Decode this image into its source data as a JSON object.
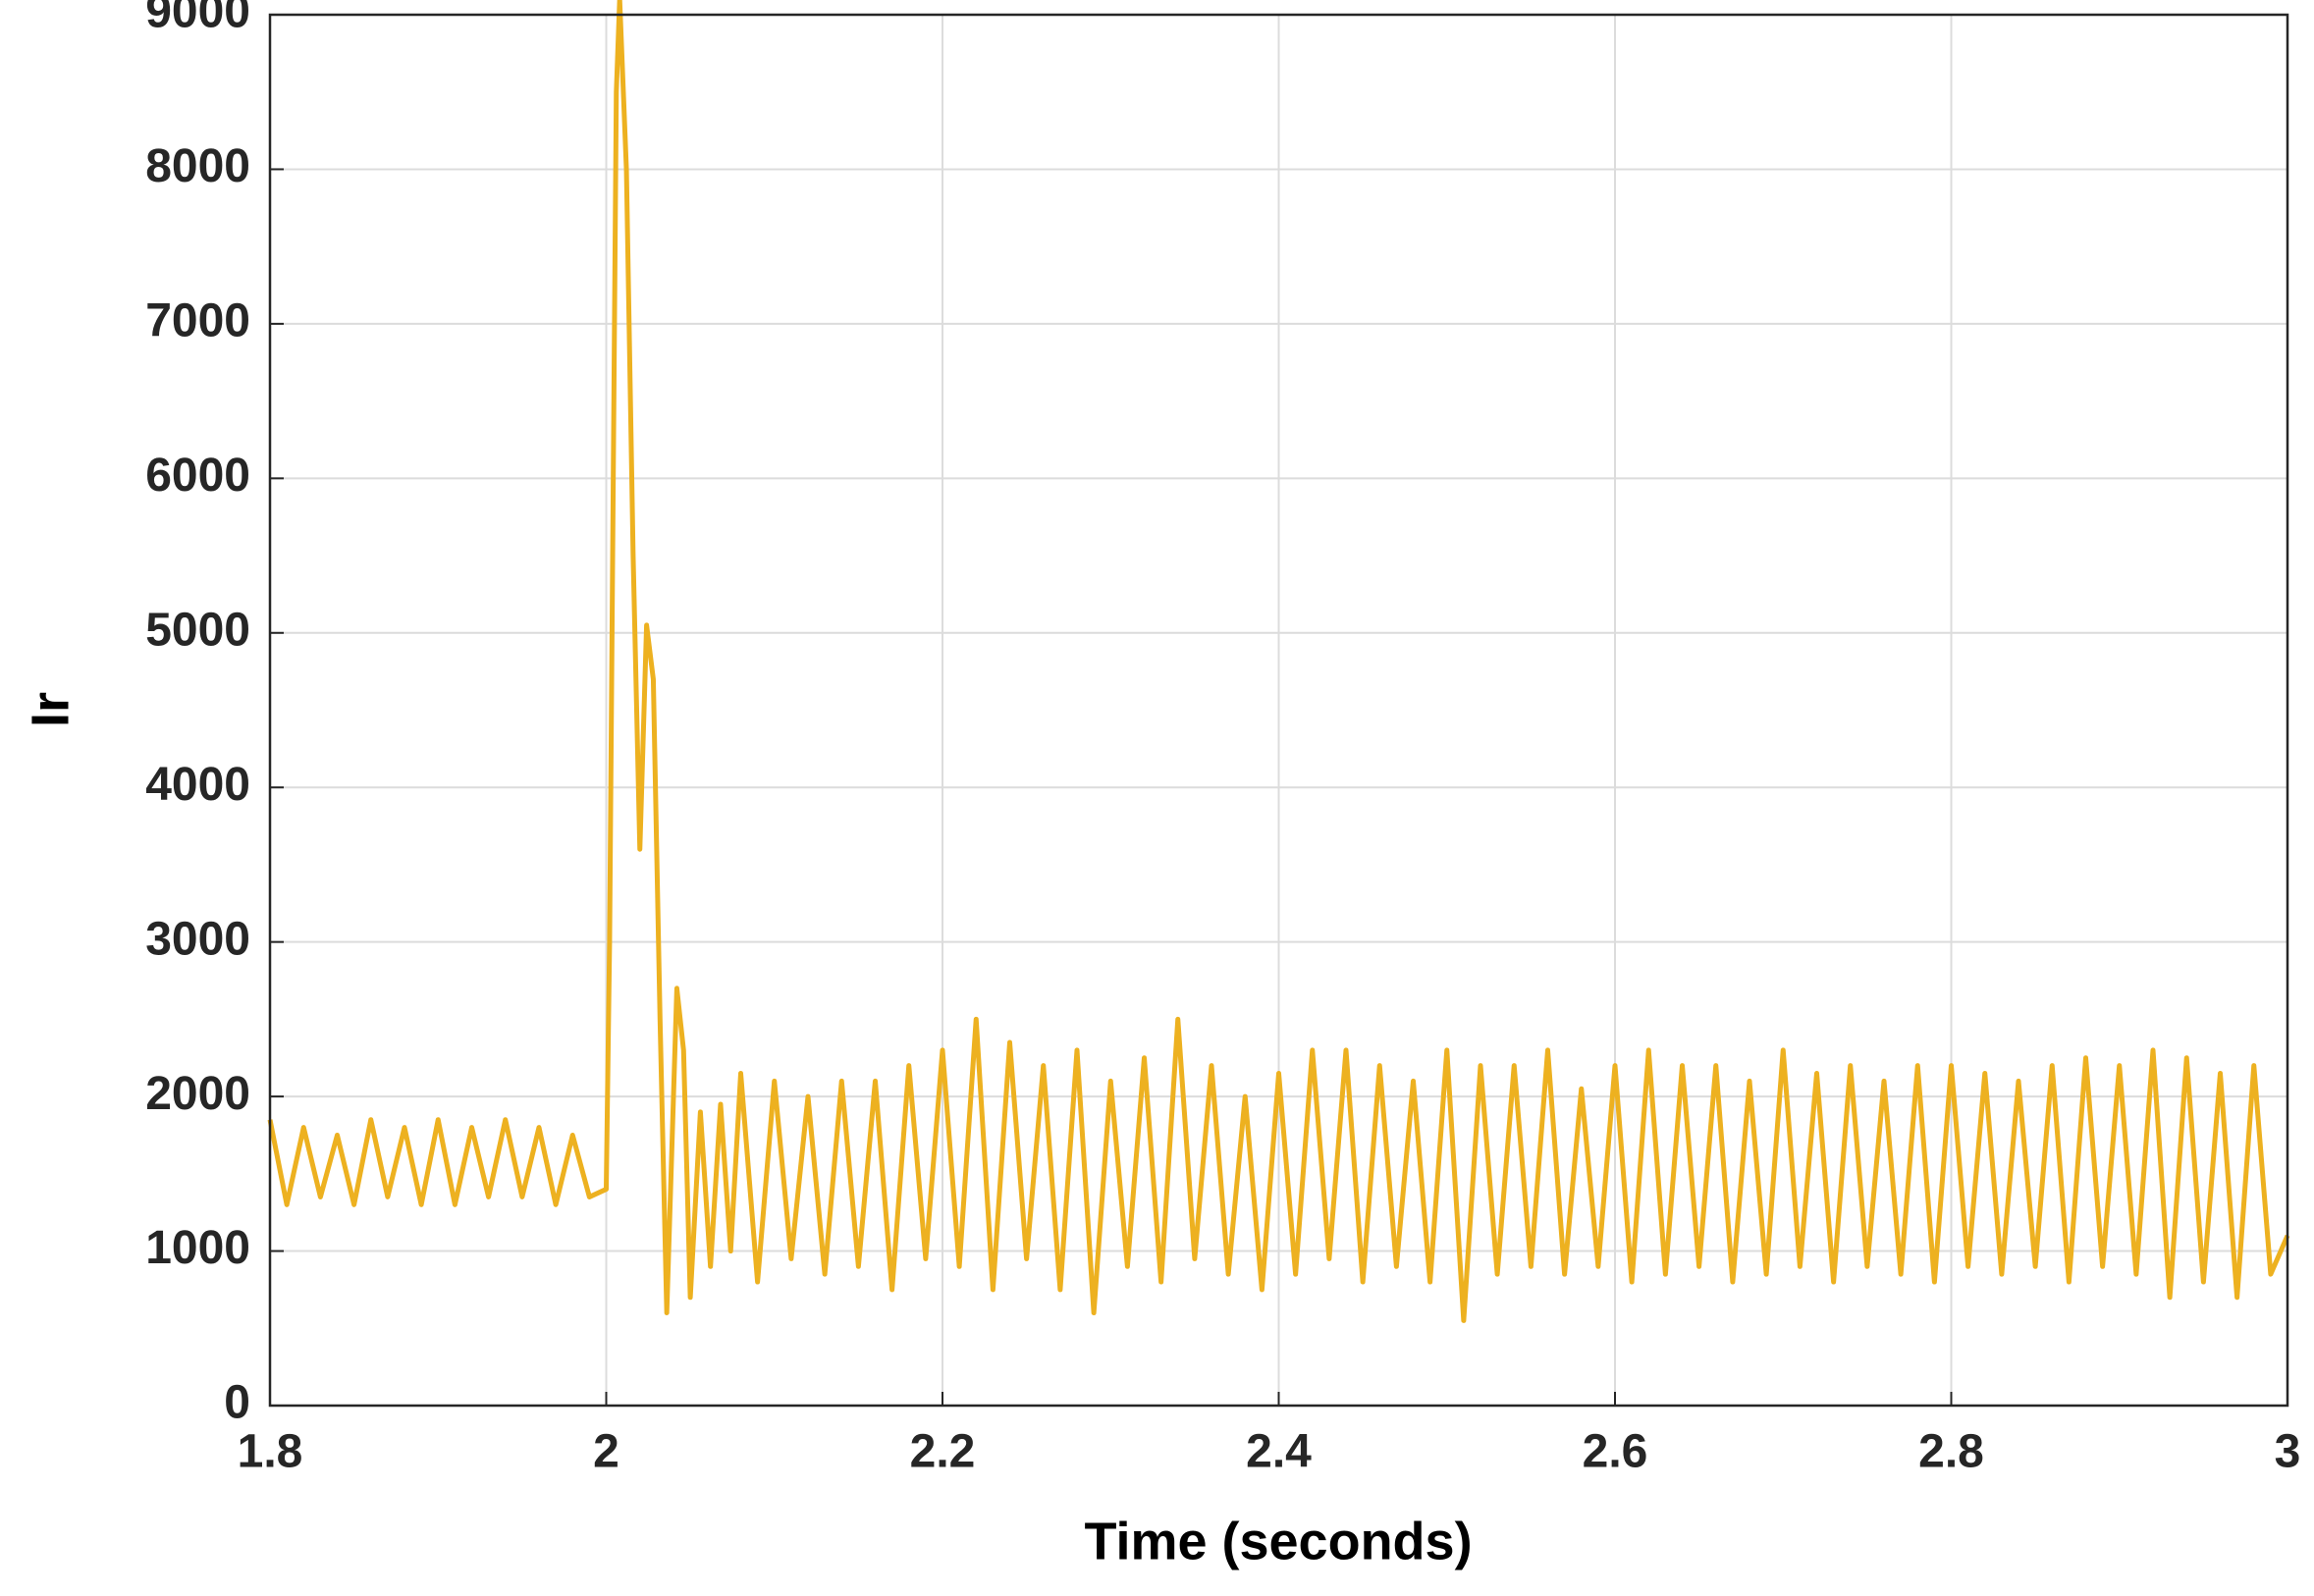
{
  "chart_data": {
    "type": "line",
    "xlabel": "Time (seconds)",
    "ylabel": "Ir",
    "color": "#edb120",
    "grid": true,
    "xlim": [
      1.8,
      3
    ],
    "ylim": [
      0,
      9000
    ],
    "xticks": [
      1.8,
      2,
      2.2,
      2.4,
      2.6,
      2.8,
      3
    ],
    "yticks": [
      0,
      1000,
      2000,
      3000,
      4000,
      5000,
      6000,
      7000,
      8000,
      9000
    ],
    "x": [
      1.8,
      1.81,
      1.82,
      1.83,
      1.84,
      1.85,
      1.86,
      1.87,
      1.88,
      1.89,
      1.9,
      1.91,
      1.92,
      1.93,
      1.94,
      1.95,
      1.96,
      1.97,
      1.98,
      1.99,
      2.0,
      2.002,
      2.006,
      2.008,
      2.012,
      2.016,
      2.02,
      2.024,
      2.028,
      2.032,
      2.036,
      2.042,
      2.046,
      2.05,
      2.056,
      2.062,
      2.068,
      2.074,
      2.08,
      2.09,
      2.1,
      2.11,
      2.12,
      2.13,
      2.14,
      2.15,
      2.16,
      2.17,
      2.18,
      2.19,
      2.2,
      2.21,
      2.22,
      2.23,
      2.24,
      2.25,
      2.26,
      2.27,
      2.28,
      2.29,
      2.3,
      2.31,
      2.32,
      2.33,
      2.34,
      2.35,
      2.36,
      2.37,
      2.38,
      2.39,
      2.4,
      2.41,
      2.42,
      2.43,
      2.44,
      2.45,
      2.46,
      2.47,
      2.48,
      2.49,
      2.5,
      2.51,
      2.52,
      2.53,
      2.54,
      2.55,
      2.56,
      2.57,
      2.58,
      2.59,
      2.6,
      2.61,
      2.62,
      2.63,
      2.64,
      2.65,
      2.66,
      2.67,
      2.68,
      2.69,
      2.7,
      2.71,
      2.72,
      2.73,
      2.74,
      2.75,
      2.76,
      2.77,
      2.78,
      2.79,
      2.8,
      2.81,
      2.82,
      2.83,
      2.84,
      2.85,
      2.86,
      2.87,
      2.88,
      2.89,
      2.9,
      2.91,
      2.92,
      2.93,
      2.94,
      2.95,
      2.96,
      2.97,
      2.98,
      2.99,
      3.0
    ],
    "values": [
      1850,
      1300,
      1800,
      1350,
      1750,
      1300,
      1850,
      1350,
      1800,
      1300,
      1850,
      1300,
      1800,
      1350,
      1850,
      1350,
      1800,
      1300,
      1750,
      1350,
      1400,
      3000,
      8500,
      9100,
      8000,
      5500,
      3600,
      5050,
      4700,
      2500,
      600,
      2700,
      2300,
      700,
      1900,
      900,
      1950,
      1000,
      2150,
      800,
      2100,
      950,
      2000,
      850,
      2100,
      900,
      2100,
      750,
      2200,
      950,
      2300,
      900,
      2500,
      750,
      2350,
      950,
      2200,
      750,
      2300,
      600,
      2100,
      900,
      2250,
      800,
      2500,
      950,
      2200,
      850,
      2000,
      750,
      2150,
      850,
      2300,
      950,
      2300,
      800,
      2200,
      900,
      2100,
      800,
      2300,
      550,
      2200,
      850,
      2200,
      900,
      2300,
      850,
      2050,
      900,
      2200,
      800,
      2300,
      850,
      2200,
      900,
      2200,
      800,
      2100,
      850,
      2300,
      900,
      2150,
      800,
      2200,
      900,
      2100,
      850,
      2200,
      800,
      2200,
      900,
      2150,
      850,
      2100,
      900,
      2200,
      800,
      2250,
      900,
      2200,
      850,
      2300,
      700,
      2250,
      800,
      2150,
      700,
      2200,
      850,
      1100
    ]
  }
}
